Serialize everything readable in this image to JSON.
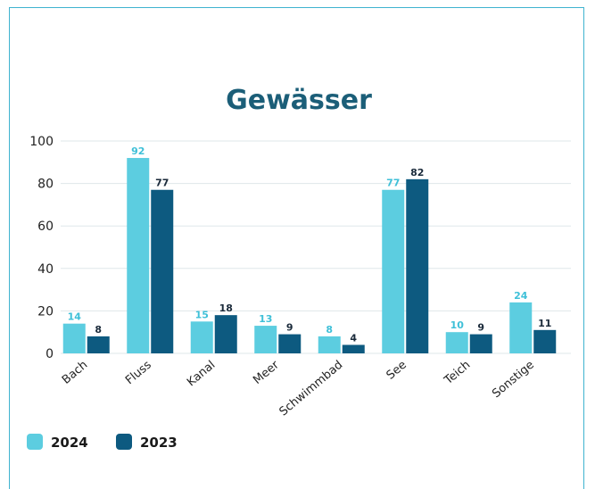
{
  "chart_data": {
    "type": "bar",
    "title": "Gewässer",
    "categories": [
      "Bach",
      "Fluss",
      "Kanal",
      "Meer",
      "Schwimmbad",
      "See",
      "Teich",
      "Sonstige"
    ],
    "series": [
      {
        "name": "2024",
        "values": [
          14,
          92,
          15,
          13,
          8,
          77,
          10,
          24
        ],
        "color": "#5ccde0"
      },
      {
        "name": "2023",
        "values": [
          8,
          77,
          18,
          9,
          4,
          82,
          9,
          11
        ],
        "color": "#0d5a80"
      }
    ],
    "yticks": [
      "0",
      "20",
      "40",
      "60",
      "80",
      "100"
    ],
    "ylim": [
      0,
      100
    ],
    "grid": true,
    "legend": "bottom-left",
    "label_colors": {
      "2024": "#3fc0d8",
      "2023": "#1a2a3a"
    }
  }
}
